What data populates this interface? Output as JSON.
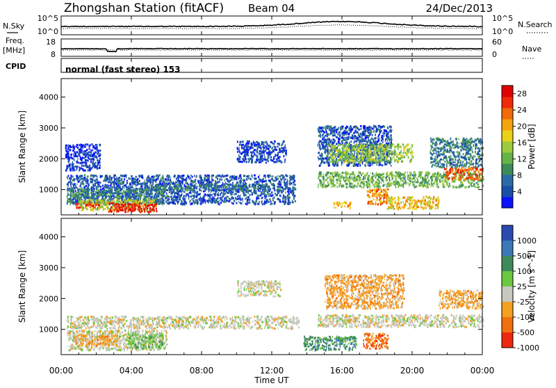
{
  "header": {
    "station": "Zhongshan Station (fitACF)",
    "beam": "Beam 04",
    "date": "24/Dec/2013"
  },
  "top_panels": {
    "nsky_label": "N.Sky",
    "nsearch_label": "N.Search",
    "freq_label": "Freq.",
    "freq_unit": "[MHz]",
    "nave_label": "Nave",
    "cpid_label": "CPID",
    "cpid_text": "normal (fast stereo) 153",
    "nsky_ticks": [
      "10^5",
      "10^0"
    ],
    "freq_ticks": [
      "18",
      "8"
    ],
    "nave_ticks": [
      "60",
      "0"
    ]
  },
  "chart_data": [
    {
      "type": "heatmap",
      "name": "power",
      "ylabel": "Slant Range [km]",
      "xlabel": "Time UT",
      "x_ticks": [
        "00:00",
        "04:00",
        "08:00",
        "12:00",
        "16:00",
        "20:00",
        "00:00"
      ],
      "xlim_hours": [
        0,
        24
      ],
      "y_ticks": [
        "1000",
        "2000",
        "3000",
        "4000"
      ],
      "ylim_km": [
        180,
        4600
      ],
      "colorbar": {
        "label": "Power [dB]",
        "ticks": [
          "4",
          "8",
          "12",
          "16",
          "20",
          "24",
          "28"
        ],
        "range": [
          0,
          30
        ],
        "colors": [
          "#0a12ff",
          "#1a4fa8",
          "#2a6aa6",
          "#3e8a5a",
          "#66b34a",
          "#9ccc3c",
          "#e8d21a",
          "#f5a20c",
          "#f06a0a",
          "#ee2a08",
          "#e00000"
        ]
      },
      "regions": [
        {
          "t0": 0.3,
          "t1": 13.3,
          "r0": 550,
          "r1": 1500,
          "v": 5
        },
        {
          "t0": 0.2,
          "t1": 2.2,
          "r0": 1650,
          "r1": 2500,
          "v": 3
        },
        {
          "t0": 0.3,
          "t1": 5.8,
          "r0": 550,
          "r1": 1050,
          "v": 9
        },
        {
          "t0": 1.0,
          "t1": 5.4,
          "r0": 350,
          "r1": 700,
          "v": 16
        },
        {
          "t0": 2.6,
          "t1": 5.4,
          "r0": 300,
          "r1": 600,
          "v": 27
        },
        {
          "t0": 0.8,
          "t1": 2.2,
          "r0": 430,
          "r1": 620,
          "v": 25
        },
        {
          "t0": 5.0,
          "t1": 11.8,
          "r0": 1000,
          "r1": 1200,
          "v": 7
        },
        {
          "t0": 10.0,
          "t1": 12.8,
          "r0": 1900,
          "r1": 2600,
          "v": 4
        },
        {
          "t0": 14.6,
          "t1": 18.8,
          "r0": 1800,
          "r1": 3100,
          "v": 5
        },
        {
          "t0": 14.6,
          "t1": 24,
          "r0": 1100,
          "r1": 1600,
          "v": 12
        },
        {
          "t0": 15.2,
          "t1": 20.0,
          "r0": 1900,
          "r1": 2500,
          "v": 14
        },
        {
          "t0": 17.4,
          "t1": 18.6,
          "r0": 550,
          "r1": 1050,
          "v": 22
        },
        {
          "t0": 18.5,
          "t1": 21.5,
          "r0": 400,
          "r1": 800,
          "v": 19
        },
        {
          "t0": 21.8,
          "t1": 24,
          "r0": 1350,
          "r1": 1750,
          "v": 24
        },
        {
          "t0": 21.0,
          "t1": 24,
          "r0": 1750,
          "r1": 2700,
          "v": 8
        },
        {
          "t0": 15.5,
          "t1": 16.5,
          "r0": 420,
          "r1": 620,
          "v": 20
        }
      ]
    },
    {
      "type": "heatmap",
      "name": "velocity",
      "ylabel": "Slant Range [km]",
      "xlabel": "Time UT",
      "x_ticks": [
        "00:00",
        "04:00",
        "08:00",
        "12:00",
        "16:00",
        "20:00",
        "00:00"
      ],
      "xlim_hours": [
        0,
        24
      ],
      "y_ticks": [
        "1000",
        "2000",
        "3000",
        "4000"
      ],
      "ylim_km": [
        180,
        4600
      ],
      "colorbar": {
        "label": "Velocity [m s^-1]",
        "ticks": [
          "1000",
          "500",
          "100",
          "25",
          "-25",
          "-100",
          "-500",
          "-1000"
        ],
        "colors": [
          "#2a4ab0",
          "#3a78b8",
          "#3f8a5a",
          "#6cc840",
          "#c8c8c0",
          "#f5a020",
          "#f07010",
          "#ee2810"
        ]
      },
      "regions": [
        {
          "t0": 0.3,
          "t1": 13.5,
          "r0": 1050,
          "r1": 1450,
          "v": 4
        },
        {
          "t0": 0.3,
          "t1": 6.0,
          "r0": 350,
          "r1": 1000,
          "v": 4
        },
        {
          "t0": 0.8,
          "t1": 3.2,
          "r0": 500,
          "r1": 850,
          "v": 5
        },
        {
          "t0": 3.8,
          "t1": 5.8,
          "r0": 400,
          "r1": 900,
          "v": 3
        },
        {
          "t0": 10.0,
          "t1": 12.5,
          "r0": 2100,
          "r1": 2600,
          "v": 4
        },
        {
          "t0": 14.6,
          "t1": 24,
          "r0": 1100,
          "r1": 1500,
          "v": 4
        },
        {
          "t0": 15.0,
          "t1": 19.5,
          "r0": 1700,
          "r1": 2800,
          "v": 5
        },
        {
          "t0": 17.2,
          "t1": 18.6,
          "r0": 400,
          "r1": 900,
          "v": 6
        },
        {
          "t0": 13.8,
          "t1": 16.8,
          "r0": 350,
          "r1": 800,
          "v": 2
        },
        {
          "t0": 21.5,
          "t1": 24,
          "r0": 1700,
          "r1": 2300,
          "v": 5
        }
      ]
    }
  ]
}
